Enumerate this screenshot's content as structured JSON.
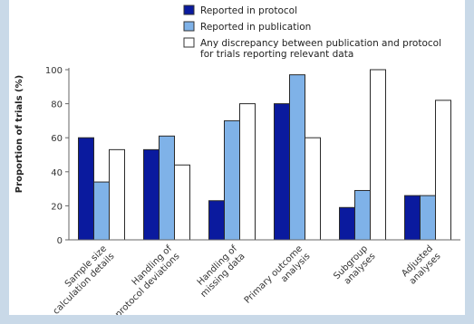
{
  "chart_data": {
    "type": "bar",
    "ylabel": "Proportion of trials (%)",
    "ylim": [
      0,
      100
    ],
    "yticks": [
      "0",
      "20",
      "40",
      "60",
      "80",
      "100"
    ],
    "grid": false,
    "legend_position": "top",
    "categories": [
      [
        "Sample size",
        "calculation details"
      ],
      [
        "Handling of",
        "protocol deviations"
      ],
      [
        "Handling of",
        "missing data"
      ],
      [
        "Primary outcome",
        "analysis"
      ],
      [
        "Subgroup",
        "analyses"
      ],
      [
        "Adjusted",
        "analyses"
      ]
    ],
    "series": [
      {
        "name": "Reported in protocol",
        "color": "#0a1a9e",
        "values": [
          60,
          53,
          23,
          80,
          19,
          26
        ]
      },
      {
        "name": "Reported in publication",
        "color": "#7fb2e8",
        "values": [
          34,
          61,
          70,
          97,
          29,
          26
        ]
      },
      {
        "name": "Any discrepancy between publication and protocol for trials reporting relevant data",
        "color": "#ffffff",
        "values": [
          53,
          44,
          80,
          60,
          100,
          82
        ]
      }
    ]
  }
}
